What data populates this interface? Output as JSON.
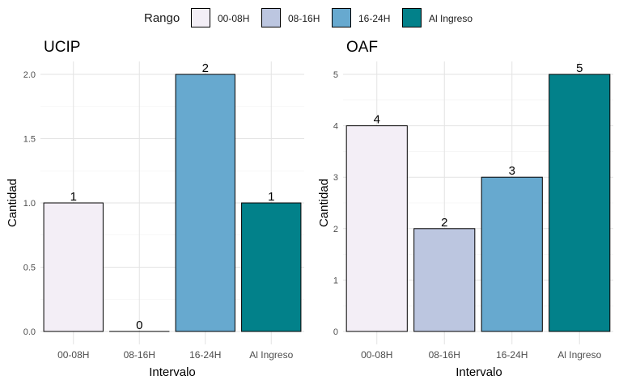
{
  "legend": {
    "title": "Rango",
    "items": [
      {
        "label": "00-08H",
        "color": "#F3EEF6"
      },
      {
        "label": "08-16H",
        "color": "#BCC6E0"
      },
      {
        "label": "16-24H",
        "color": "#67A9CF"
      },
      {
        "label": "Al Ingreso",
        "color": "#02818A"
      }
    ]
  },
  "chart_data": [
    {
      "type": "bar",
      "title": "UCIP",
      "xlabel": "Intervalo",
      "ylabel": "Cantidad",
      "categories": [
        "00-08H",
        "08-16H",
        "16-24H",
        "Al Ingreso"
      ],
      "values": [
        1,
        0,
        2,
        1
      ],
      "value_labels": [
        "1",
        "0",
        "2",
        "1"
      ],
      "colors": [
        "#F3EEF6",
        "#BCC6E0",
        "#67A9CF",
        "#02818A"
      ],
      "ylim": [
        0,
        2.0
      ],
      "yticks": [
        0.0,
        0.5,
        1.0,
        1.5,
        2.0
      ],
      "ytick_labels": [
        "0.0",
        "0.5",
        "1.0",
        "1.5",
        "2.0"
      ],
      "grid": true
    },
    {
      "type": "bar",
      "title": "OAF",
      "xlabel": "Intervalo",
      "ylabel": "Cantidad",
      "categories": [
        "00-08H",
        "08-16H",
        "16-24H",
        "Al Ingreso"
      ],
      "values": [
        4,
        2,
        3,
        5
      ],
      "value_labels": [
        "4",
        "2",
        "3",
        "5"
      ],
      "colors": [
        "#F3EEF6",
        "#BCC6E0",
        "#67A9CF",
        "#02818A"
      ],
      "ylim": [
        0,
        5
      ],
      "yticks": [
        0,
        1,
        2,
        3,
        4,
        5
      ],
      "ytick_labels": [
        "0",
        "1",
        "2",
        "3",
        "4",
        "5"
      ],
      "grid": true
    }
  ]
}
